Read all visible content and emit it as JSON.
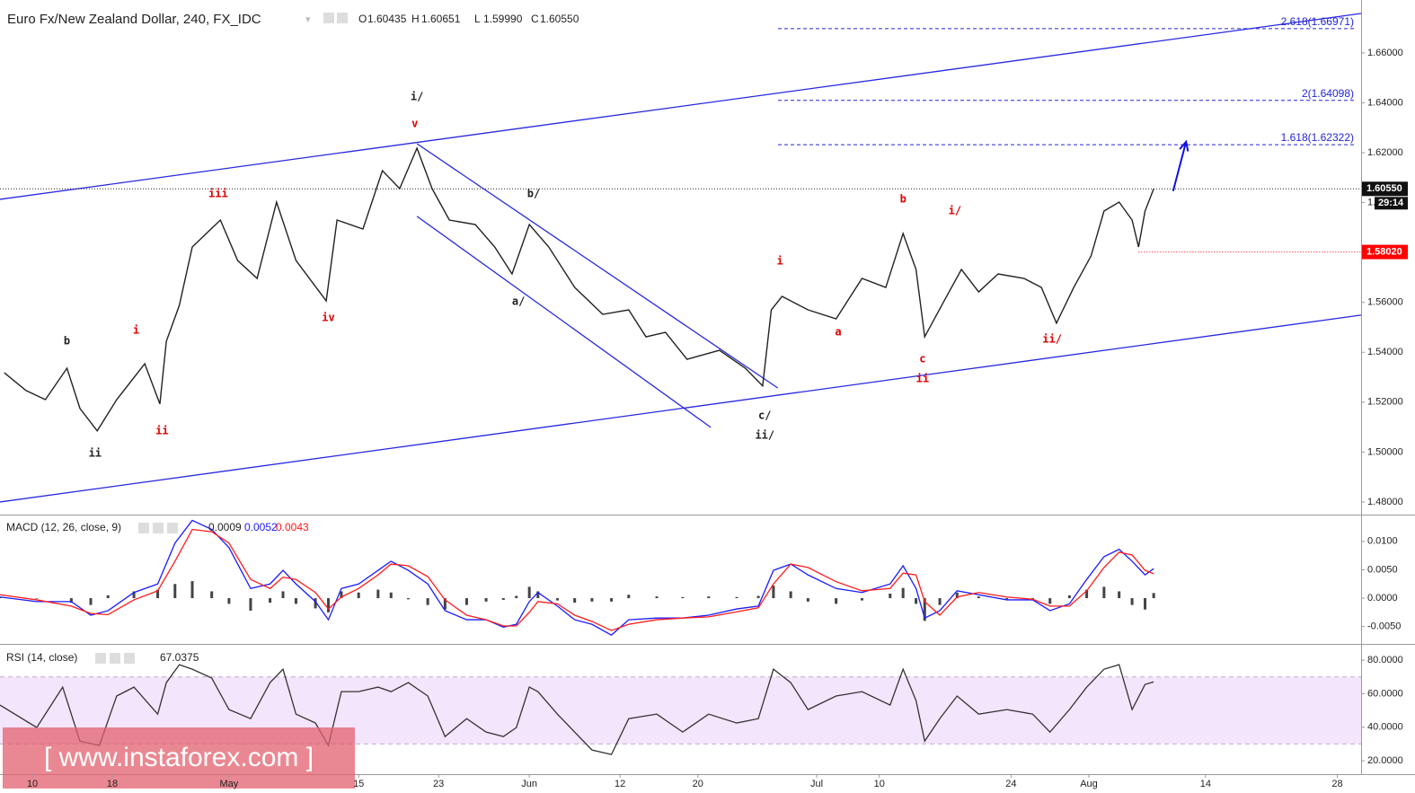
{
  "chart_data": [
    {
      "type": "line",
      "title": "Euro Fx/New Zealand Dollar, 240, FX_IDC",
      "ohlc": {
        "labels": [
          "O",
          "H",
          "L",
          "C"
        ],
        "values": [
          1.60435,
          1.60651,
          1.5999,
          1.6055
        ],
        "value_labels": [
          "1.60435",
          "1.60651",
          "1.59990",
          "1.60550"
        ]
      },
      "countdown": "29:14",
      "marked_level": {
        "value": 1.5802,
        "label": "1.58020",
        "color": "#ff0000"
      },
      "color": "#222222",
      "x": [
        2,
        12,
        21,
        31,
        37,
        45,
        54,
        67,
        74,
        77,
        83,
        89,
        102,
        110,
        119,
        128,
        137,
        151,
        156,
        168,
        177,
        185,
        193,
        200,
        208,
        220,
        229,
        237,
        245,
        254,
        266,
        279,
        291,
        299,
        308,
        318,
        333,
        345,
        353,
        357,
        362,
        374,
        387,
        399,
        410,
        418,
        424,
        428,
        437,
        445,
        453,
        462,
        474,
        482,
        489,
        497,
        505,
        511,
        518,
        524,
        527,
        530,
        534
      ],
      "values": [
        1.5318,
        1.5247,
        1.521,
        1.5336,
        1.5175,
        1.5085,
        1.521,
        1.5354,
        1.5193,
        1.5444,
        1.5588,
        1.5822,
        1.593,
        1.5768,
        1.5696,
        1.6002,
        1.5768,
        1.5606,
        1.593,
        1.5894,
        1.6128,
        1.6056,
        1.6218,
        1.6056,
        1.593,
        1.5912,
        1.5822,
        1.5714,
        1.5912,
        1.5822,
        1.566,
        1.5552,
        1.557,
        1.5462,
        1.548,
        1.5372,
        1.5408,
        1.5336,
        1.5265,
        1.557,
        1.5624,
        1.557,
        1.5534,
        1.5696,
        1.566,
        1.5876,
        1.5732,
        1.5462,
        1.5606,
        1.5732,
        1.5642,
        1.5714,
        1.5696,
        1.566,
        1.5517,
        1.566,
        1.5786,
        1.5966,
        1.6002,
        1.593,
        1.5822,
        1.5966,
        1.6055
      ],
      "xlim": [
        0,
        630
      ],
      "ylim": [
        1.4753,
        1.6812
      ],
      "yticks": [
        {
          "value": 1.48,
          "label": "1.48000"
        },
        {
          "value": 1.5,
          "label": "1.50000"
        },
        {
          "value": 1.52,
          "label": "1.52000"
        },
        {
          "value": 1.54,
          "label": "1.54000"
        },
        {
          "value": 1.56,
          "label": "1.56000"
        },
        {
          "value": 1.58,
          "label": "1.58000"
        },
        {
          "value": 1.6,
          "label": "1.60000"
        },
        {
          "value": 1.62,
          "label": "1.62000"
        },
        {
          "value": 1.64,
          "label": "1.64000"
        },
        {
          "value": 1.66,
          "label": "1.66000"
        }
      ],
      "levels": [
        {
          "value": 1.62322,
          "label": "1.618(1.62322)"
        },
        {
          "value": 1.64098,
          "label": "2(1.64098)"
        },
        {
          "value": 1.66971,
          "label": "2.618(1.66971)"
        }
      ],
      "level_color": "#2424d8",
      "trendlines": [
        {
          "x": [
            0,
            630
          ],
          "values": [
            1.6013,
            1.6758
          ],
          "color": "#2828e0"
        },
        {
          "x": [
            0,
            630
          ],
          "values": [
            1.48,
            1.5549
          ],
          "color": "#2828e0"
        },
        {
          "x": [
            193,
            360
          ],
          "values": [
            1.6236,
            1.5257
          ],
          "color": "#2828e0"
        },
        {
          "x": [
            193,
            329
          ],
          "values": [
            1.5945,
            1.5099
          ],
          "color": "#2828e0"
        }
      ],
      "arrow": {
        "x": [
          543,
          549
        ],
        "values": [
          1.6046,
          1.6244
        ],
        "color": "#1010e0"
      },
      "annotations": [
        {
          "text": "b",
          "x": 31,
          "y": 1.5444,
          "color": "#222222"
        },
        {
          "text": "ii",
          "x": 44,
          "y": 1.4995,
          "color": "#222222"
        },
        {
          "text": "i",
          "x": 63,
          "y": 1.5488,
          "color": "#e00000"
        },
        {
          "text": "ii",
          "x": 75,
          "y": 1.5085,
          "color": "#e00000"
        },
        {
          "text": "iii",
          "x": 101,
          "y": 1.6035,
          "color": "#e00000"
        },
        {
          "text": "iv",
          "x": 152,
          "y": 1.5538,
          "color": "#e00000"
        },
        {
          "text": "i/",
          "x": 193,
          "y": 1.6424,
          "color": "#222222"
        },
        {
          "text": "v",
          "x": 192,
          "y": 1.6316,
          "color": "#e00000"
        },
        {
          "text": "b/",
          "x": 247,
          "y": 1.6035,
          "color": "#222222"
        },
        {
          "text": "a/",
          "x": 240,
          "y": 1.5603,
          "color": "#222222"
        },
        {
          "text": "c/",
          "x": 354,
          "y": 1.5146,
          "color": "#222222"
        },
        {
          "text": "ii/",
          "x": 354,
          "y": 1.5067,
          "color": "#222222"
        },
        {
          "text": "i",
          "x": 361,
          "y": 1.5765,
          "color": "#e00000"
        },
        {
          "text": "a",
          "x": 388,
          "y": 1.548,
          "color": "#e00000"
        },
        {
          "text": "b",
          "x": 418,
          "y": 1.6013,
          "color": "#e00000"
        },
        {
          "text": "i/",
          "x": 442,
          "y": 1.5966,
          "color": "#e00000"
        },
        {
          "text": "c",
          "x": 427,
          "y": 1.5372,
          "color": "#e00000"
        },
        {
          "text": "ii",
          "x": 427,
          "y": 1.5293,
          "color": "#e00000"
        },
        {
          "text": "ii/",
          "x": 487,
          "y": 1.5452,
          "color": "#e00000"
        }
      ]
    },
    {
      "type": "line",
      "title": "MACD (12, 26, close, 9)",
      "x": [
        0,
        17,
        33,
        42,
        50,
        62,
        73,
        81,
        89,
        98,
        106,
        116,
        125,
        131,
        137,
        146,
        152,
        158,
        166,
        175,
        181,
        189,
        198,
        206,
        216,
        225,
        233,
        239,
        245,
        249,
        258,
        266,
        274,
        283,
        291,
        304,
        316,
        328,
        341,
        351,
        358,
        366,
        374,
        387,
        399,
        412,
        418,
        424,
        428,
        435,
        443,
        453,
        466,
        478,
        486,
        495,
        503,
        511,
        518,
        524,
        530,
        534
      ],
      "histogram": {
        "color": "#444444",
        "values": [
          0.0002,
          -0.0001,
          -0.0008,
          -0.0012,
          0.0005,
          0.0012,
          0.0015,
          0.0025,
          0.003,
          0.0012,
          -0.001,
          -0.0022,
          -0.0008,
          0.0012,
          -0.001,
          -0.0018,
          -0.0025,
          0.0012,
          0.001,
          0.0015,
          0.001,
          -0.0002,
          -0.0012,
          -0.002,
          -0.0012,
          -0.0006,
          -0.0003,
          0.0004,
          0.002,
          0.0012,
          -0.0004,
          -0.0008,
          -0.0006,
          -0.0006,
          0.0006,
          0.0003,
          0.0002,
          0.0003,
          0.0002,
          0.0004,
          0.0022,
          0.0012,
          -0.0006,
          -0.001,
          -0.0004,
          0.0008,
          0.0018,
          -0.001,
          -0.004,
          -0.0012,
          0.001,
          0.0003,
          -0.0002,
          -0.0002,
          -0.001,
          0.0005,
          0.0015,
          0.002,
          0.0012,
          -0.0012,
          -0.002,
          0.0009
        ]
      },
      "series": [
        {
          "color": "#1a1aff",
          "values": [
            0.0002,
            -0.0006,
            -0.0006,
            -0.003,
            -0.0022,
            0.001,
            0.0025,
            0.0097,
            0.0137,
            0.0121,
            0.0089,
            0.0017,
            0.0025,
            0.0049,
            0.0025,
            -0.0006,
            -0.0038,
            0.0017,
            0.0025,
            0.0049,
            0.0065,
            0.0049,
            0.0025,
            -0.0022,
            -0.0038,
            -0.0038,
            -0.0051,
            -0.0046,
            -0.0006,
            0.001,
            -0.0014,
            -0.0038,
            -0.0046,
            -0.0065,
            -0.0038,
            -0.0035,
            -0.0035,
            -0.003,
            -0.0019,
            -0.0014,
            0.0049,
            0.006,
            0.0041,
            0.0017,
            0.001,
            0.0025,
            0.0057,
            0.0017,
            -0.0035,
            -0.0022,
            0.0013,
            0.0006,
            -0.0003,
            -0.0003,
            -0.0022,
            -0.001,
            0.0033,
            0.0073,
            0.0086,
            0.0065,
            0.0041,
            0.0052
          ]
        },
        {
          "color": "#ff1a1a",
          "values": [
            0.0006,
            -0.0003,
            -0.0014,
            -0.0027,
            -0.0029,
            -0.0003,
            0.0013,
            0.0065,
            0.0121,
            0.0117,
            0.0097,
            0.0033,
            0.0017,
            0.0037,
            0.0033,
            0.001,
            -0.0019,
            0.0002,
            0.0017,
            0.0041,
            0.006,
            0.0057,
            0.0038,
            -0.0003,
            -0.003,
            -0.0038,
            -0.0049,
            -0.0049,
            -0.0025,
            -0.0006,
            -0.001,
            -0.003,
            -0.0041,
            -0.0057,
            -0.0046,
            -0.0038,
            -0.0035,
            -0.0033,
            -0.0024,
            -0.0017,
            0.0025,
            0.006,
            0.0054,
            0.0029,
            0.0013,
            0.0017,
            0.0044,
            0.0041,
            -0.0006,
            -0.003,
            0.0002,
            0.001,
            0.0002,
            -0.0002,
            -0.0014,
            -0.0014,
            0.0013,
            0.0054,
            0.0081,
            0.0076,
            0.0049,
            0.0043
          ]
        }
      ],
      "xlim": [
        0,
        630
      ],
      "ylim": [
        -0.0079,
        0.0144
      ],
      "yticks": [
        {
          "value": -0.005,
          "label": "-0.0050"
        },
        {
          "value": 0,
          "label": "0.0000"
        },
        {
          "value": 0.005,
          "label": "0.0050"
        },
        {
          "value": 0.01,
          "label": "0.0100"
        }
      ]
    },
    {
      "type": "line",
      "title": "RSI (14, close)",
      "x": [
        0,
        17,
        29,
        37,
        46,
        54,
        62,
        73,
        77,
        83,
        89,
        98,
        106,
        116,
        125,
        131,
        137,
        146,
        152,
        158,
        166,
        175,
        181,
        189,
        198,
        206,
        216,
        225,
        233,
        239,
        245,
        249,
        258,
        266,
        274,
        283,
        291,
        304,
        316,
        328,
        341,
        351,
        358,
        366,
        374,
        387,
        399,
        412,
        418,
        424,
        428,
        435,
        443,
        453,
        466,
        478,
        486,
        495,
        503,
        511,
        518,
        524,
        530,
        534
      ],
      "series": [
        {
          "color": "#333333",
          "values": [
            53.2,
            39.8,
            63.9,
            31.7,
            29.1,
            58.6,
            63.9,
            47.8,
            66.6,
            77.3,
            74.6,
            69.3,
            50.5,
            45.1,
            66.6,
            74.6,
            47.8,
            42.5,
            29.1,
            61.2,
            61.2,
            63.9,
            61.2,
            66.6,
            58.6,
            34.4,
            45.1,
            37.1,
            34.4,
            39.8,
            63.9,
            61.2,
            47.8,
            37.1,
            26.4,
            23.7,
            45.1,
            47.8,
            37.1,
            47.8,
            42.5,
            45.1,
            74.6,
            66.6,
            50.5,
            58.6,
            61.2,
            53.2,
            74.6,
            55.9,
            31.7,
            45.1,
            58.6,
            47.8,
            50.5,
            47.8,
            37.1,
            50.5,
            63.9,
            74.6,
            77.3,
            50.5,
            65.5,
            67.0375
          ]
        }
      ],
      "band": [
        30,
        70
      ],
      "band_color": "#f3e5fb",
      "xlim": [
        0,
        630
      ],
      "ylim": [
        12,
        88.6
      ],
      "yticks": [
        {
          "value": 20,
          "label": "20.0000"
        },
        {
          "value": 40,
          "label": "40.0000"
        },
        {
          "value": 60,
          "label": "60.0000"
        },
        {
          "value": 80,
          "label": "80.0000"
        }
      ],
      "xticks": [
        {
          "value": 15,
          "label": "10"
        },
        {
          "value": 52,
          "label": "18"
        },
        {
          "value": 106,
          "label": "May"
        },
        {
          "value": 166,
          "label": "15"
        },
        {
          "value": 203,
          "label": "23"
        },
        {
          "value": 245,
          "label": "Jun"
        },
        {
          "value": 287,
          "label": "12"
        },
        {
          "value": 323,
          "label": "20"
        },
        {
          "value": 378,
          "label": "Jul"
        },
        {
          "value": 407,
          "label": "10"
        },
        {
          "value": 468,
          "label": "24"
        },
        {
          "value": 504,
          "label": "Aug"
        },
        {
          "value": 558,
          "label": "14"
        },
        {
          "value": 619,
          "label": "28"
        }
      ]
    }
  ],
  "watermark": "[ www.instaforex.com ]"
}
